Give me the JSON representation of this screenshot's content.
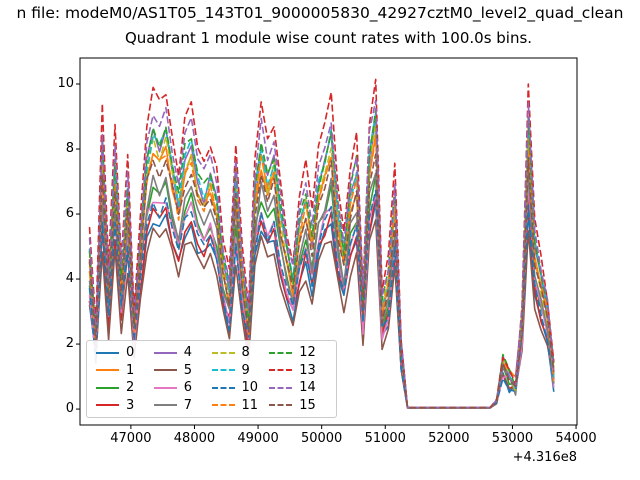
{
  "figure": {
    "suptitle": "n file: modeM0/AS1T05_143T01_9000005830_42927cztM0_level2_quad_clean",
    "axes_title": "Quadrant 1 module wise count rates with 100.0s bins."
  },
  "chart_data": {
    "type": "line",
    "title": "Quadrant 1 module wise count rates with 100.0s bins.",
    "xlabel": "",
    "ylabel": "",
    "grid": false,
    "legend_position": "lower left",
    "legend_columns": 4,
    "x_offset_label": "+4.316e8",
    "x_ticks": [
      47000,
      48000,
      49000,
      50000,
      51000,
      52000,
      53000,
      54000
    ],
    "x_tick_labels": [
      "47000",
      "48000",
      "49000",
      "50000",
      "51000",
      "52000",
      "53000",
      "54000"
    ],
    "y_ticks": [
      0,
      2,
      4,
      6,
      8,
      10
    ],
    "y_tick_labels": [
      "0",
      "2",
      "4",
      "6",
      "8",
      "10"
    ],
    "xlim": [
      46200,
      54015
    ],
    "ylim": [
      -0.49,
      10.8
    ],
    "bin_seconds": 100.0,
    "x_start": 46350,
    "x_step": 100,
    "base_values": [
      5.6,
      2.6,
      9.2,
      4.3,
      8.7,
      4.6,
      7.8,
      3.2,
      6.0,
      8.8,
      9.9,
      9.3,
      9.9,
      8.6,
      7.4,
      8.9,
      9.5,
      8.2,
      7.7,
      8.3,
      7.4,
      5.2,
      4.2,
      8.3,
      5.0,
      3.1,
      7.7,
      9.4,
      8.2,
      8.9,
      7.0,
      5.6,
      4.6,
      6.6,
      7.5,
      6.1,
      7.9,
      8.8,
      9.7,
      7.0,
      5.6,
      7.6,
      8.5,
      3.8,
      9.0,
      10.3,
      3.6,
      4.6,
      7.6,
      2.2,
      0.05,
      0.05,
      0.05,
      0.05,
      0.05,
      0.05,
      0.05,
      0.05,
      0.05,
      0.05,
      0.05,
      0.05,
      0.05,
      0.05,
      0.3,
      1.7,
      1.2,
      0.9,
      3.2,
      10.2,
      5.8,
      4.6,
      3.5,
      1.3
    ],
    "series": [
      {
        "label": "0",
        "color": "#1f77b4",
        "dash": false,
        "scale": 0.6
      },
      {
        "label": "1",
        "color": "#ff7f0e",
        "dash": false,
        "scale": 0.8
      },
      {
        "label": "2",
        "color": "#2ca02c",
        "dash": false,
        "scale": 0.7
      },
      {
        "label": "3",
        "color": "#d62728",
        "dash": false,
        "scale": 0.62
      },
      {
        "label": "4",
        "color": "#9467bd",
        "dash": false,
        "scale": 0.85
      },
      {
        "label": "5",
        "color": "#8c564b",
        "dash": false,
        "scale": 0.55
      },
      {
        "label": "6",
        "color": "#e377c2",
        "dash": false,
        "scale": 0.66
      },
      {
        "label": "7",
        "color": "#7f7f7f",
        "dash": false,
        "scale": 0.72
      },
      {
        "label": "8",
        "color": "#bcbd22",
        "dash": true,
        "scale": 0.83
      },
      {
        "label": "9",
        "color": "#17becf",
        "dash": true,
        "scale": 0.86
      },
      {
        "label": "10",
        "color": "#1f77b4",
        "dash": true,
        "scale": 0.64
      },
      {
        "label": "11",
        "color": "#ff7f0e",
        "dash": true,
        "scale": 0.81
      },
      {
        "label": "12",
        "color": "#2ca02c",
        "dash": true,
        "scale": 0.89
      },
      {
        "label": "13",
        "color": "#d62728",
        "dash": true,
        "scale": 1.0
      },
      {
        "label": "14",
        "color": "#9467bd",
        "dash": true,
        "scale": 0.93
      },
      {
        "label": "15",
        "color": "#8c564b",
        "dash": true,
        "scale": 0.78
      }
    ]
  }
}
